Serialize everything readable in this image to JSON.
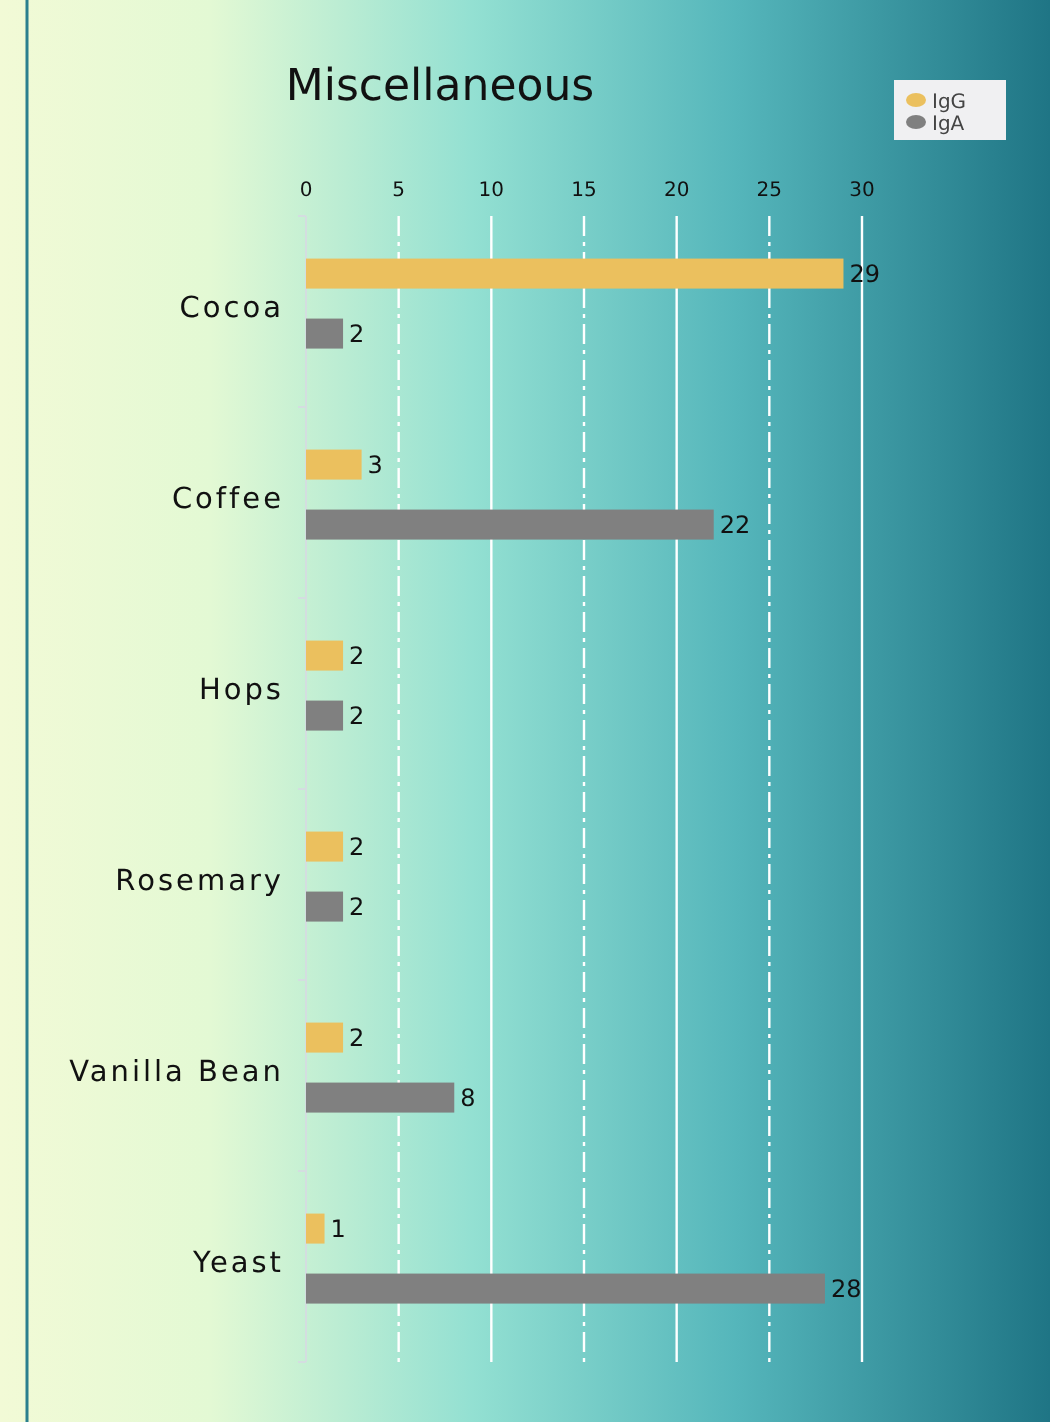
{
  "chart_data": {
    "type": "bar",
    "orientation": "horizontal",
    "title": "Miscellaneous",
    "categories": [
      "Cocoa",
      "Coffee",
      "Hops",
      "Rosemary",
      "Vanilla Bean",
      "Yeast"
    ],
    "series": [
      {
        "name": "IgG",
        "color": "#ebc05e",
        "values": [
          29,
          3,
          2,
          2,
          2,
          1
        ]
      },
      {
        "name": "IgA",
        "color": "#808080",
        "values": [
          2,
          22,
          2,
          2,
          8,
          28
        ]
      }
    ],
    "xlim": [
      0,
      30
    ],
    "xticks": [
      0,
      5,
      10,
      15,
      20,
      25,
      30
    ],
    "grid": "x",
    "legend": "top right",
    "data_labels": true
  }
}
